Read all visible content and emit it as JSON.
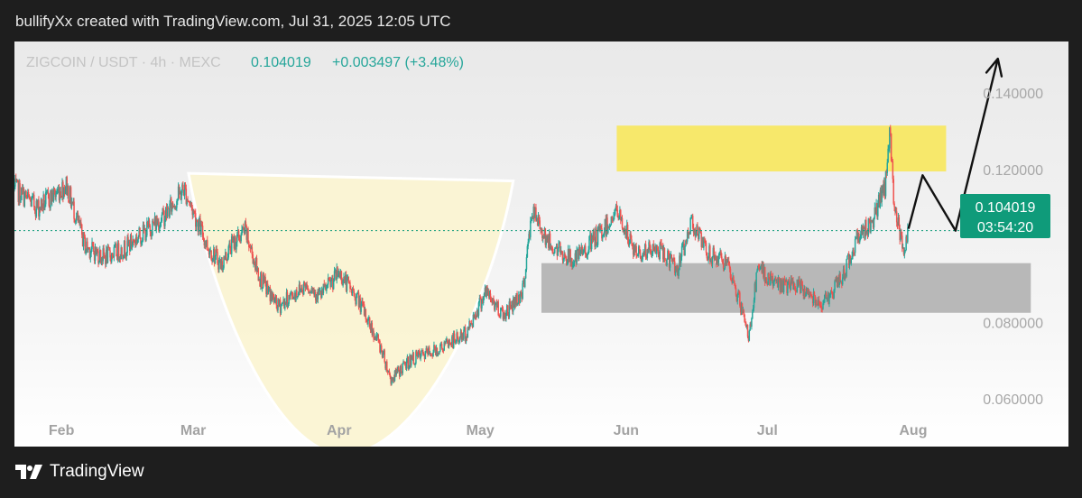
{
  "caption": "bullifyXx created with TradingView.com, Jul 31, 2025 12:05 UTC",
  "brand": "TradingView",
  "colors": {
    "up": "#26a69a",
    "down": "#ef5350",
    "last_price_bg": "#0f9b7a",
    "resistance_zone": "#f7e86b",
    "support_zone": "#b8b8b8",
    "cup_fill": "#fbf4d0",
    "projection": "#111111"
  },
  "header": {
    "symbol": "ZIGCOIN / USDT · 4h · MEXC",
    "price": "0.104019",
    "change": "+0.003497 (+3.48%)"
  },
  "last_price": {
    "value": "0.104019",
    "countdown": "03:54:20"
  },
  "chart_data": {
    "type": "candlestick",
    "x_axis": {
      "labels": [
        "Feb",
        "Mar",
        "Apr",
        "May",
        "Jun",
        "Jul",
        "Aug"
      ],
      "dates": [
        "2025-02-01",
        "2025-03-01",
        "2025-04-01",
        "2025-05-01",
        "2025-06-01",
        "2025-07-01",
        "2025-08-01"
      ],
      "range": [
        "2025-01-22",
        "2025-09-03"
      ]
    },
    "y_axis": {
      "labels": [
        "0.140000",
        "0.120000",
        "0.080000",
        "0.060000"
      ],
      "ticks": [
        0.14,
        0.12,
        0.08,
        0.06
      ],
      "range": [
        0.0475,
        0.1535
      ]
    },
    "price_path": [
      [
        "2025-01-22",
        0.115
      ],
      [
        "2025-01-27",
        0.11
      ],
      [
        "2025-02-02",
        0.116
      ],
      [
        "2025-02-06",
        0.1
      ],
      [
        "2025-02-10",
        0.097
      ],
      [
        "2025-02-14",
        0.099
      ],
      [
        "2025-02-18",
        0.103
      ],
      [
        "2025-02-23",
        0.108
      ],
      [
        "2025-02-27",
        0.115
      ],
      [
        "2025-03-04",
        0.1
      ],
      [
        "2025-03-07",
        0.095
      ],
      [
        "2025-03-09",
        0.1
      ],
      [
        "2025-03-12",
        0.104
      ],
      [
        "2025-03-15",
        0.092
      ],
      [
        "2025-03-19",
        0.084
      ],
      [
        "2025-03-25",
        0.09
      ],
      [
        "2025-03-28",
        0.087
      ],
      [
        "2025-04-01",
        0.093
      ],
      [
        "2025-04-05",
        0.086
      ],
      [
        "2025-04-10",
        0.073
      ],
      [
        "2025-04-12",
        0.065
      ],
      [
        "2025-04-16",
        0.07
      ],
      [
        "2025-04-22",
        0.073
      ],
      [
        "2025-04-28",
        0.077
      ],
      [
        "2025-05-02",
        0.088
      ],
      [
        "2025-05-06",
        0.082
      ],
      [
        "2025-05-10",
        0.088
      ],
      [
        "2025-05-12",
        0.109
      ],
      [
        "2025-05-16",
        0.1
      ],
      [
        "2025-05-21",
        0.096
      ],
      [
        "2025-05-27",
        0.104
      ],
      [
        "2025-05-30",
        0.109
      ],
      [
        "2025-06-03",
        0.098
      ],
      [
        "2025-06-08",
        0.099
      ],
      [
        "2025-06-12",
        0.094
      ],
      [
        "2025-06-15",
        0.107
      ],
      [
        "2025-06-18",
        0.098
      ],
      [
        "2025-06-22",
        0.096
      ],
      [
        "2025-06-25",
        0.086
      ],
      [
        "2025-06-27",
        0.076
      ],
      [
        "2025-06-29",
        0.094
      ],
      [
        "2025-07-03",
        0.09
      ],
      [
        "2025-07-08",
        0.089
      ],
      [
        "2025-07-13",
        0.085
      ],
      [
        "2025-07-17",
        0.092
      ],
      [
        "2025-07-20",
        0.102
      ],
      [
        "2025-07-23",
        0.106
      ],
      [
        "2025-07-26",
        0.115
      ],
      [
        "2025-07-27",
        0.13
      ],
      [
        "2025-07-28",
        0.11
      ],
      [
        "2025-07-30",
        0.1
      ],
      [
        "2025-07-31",
        0.104
      ]
    ],
    "zones": [
      {
        "name": "resistance",
        "from": "2025-05-30",
        "to": "2025-08-08",
        "low": 0.1195,
        "high": 0.1315
      },
      {
        "name": "support",
        "from": "2025-05-14",
        "to": "2025-08-26",
        "low": 0.0825,
        "high": 0.0955
      }
    ],
    "cup": {
      "left": [
        "2025-02-28",
        0.119
      ],
      "bottom": [
        "2025-04-02",
        0.0455
      ],
      "right": [
        "2025-05-08",
        0.117
      ]
    },
    "projection_path": [
      [
        "2025-07-31",
        0.1045
      ],
      [
        "2025-08-03",
        0.1185
      ],
      [
        "2025-08-10",
        0.104
      ],
      [
        "2025-08-19",
        0.149
      ]
    ]
  }
}
